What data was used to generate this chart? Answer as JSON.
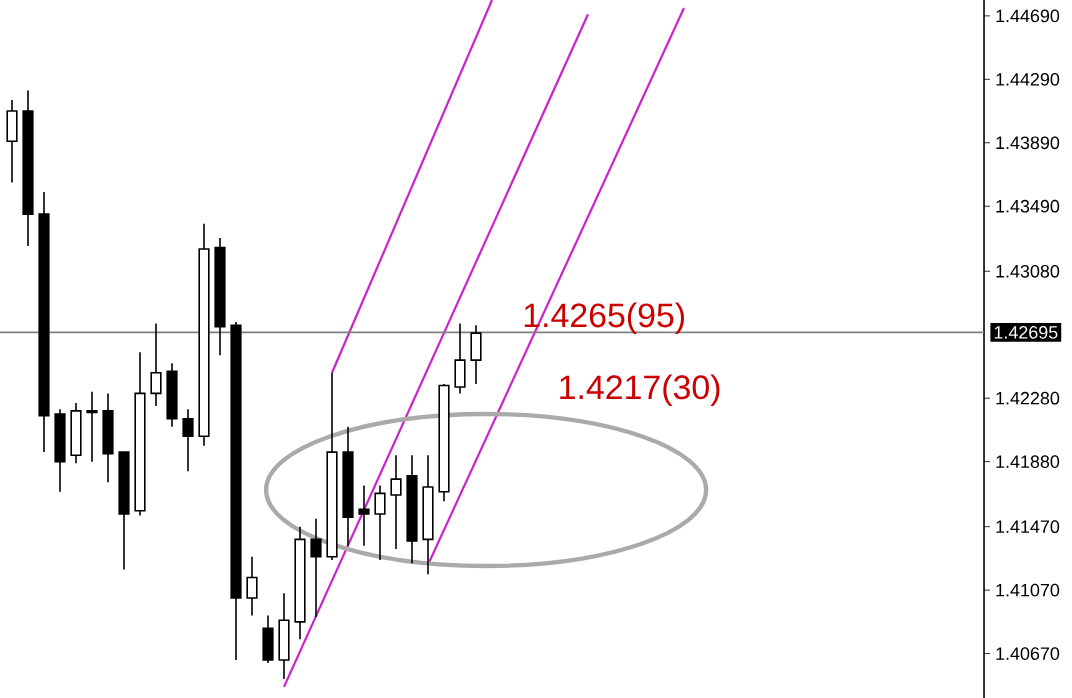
{
  "chart_data": {
    "type": "candlestick",
    "categories": [
      null,
      null,
      null,
      null,
      null,
      null,
      null,
      null,
      null,
      null,
      null,
      null,
      null,
      null,
      null,
      null,
      null,
      null,
      null,
      null,
      null,
      null,
      null,
      null,
      null,
      null,
      null,
      null,
      null,
      null,
      null,
      null,
      null,
      null,
      null,
      null,
      null,
      null,
      null,
      null,
      null,
      null,
      null,
      null,
      null,
      null,
      null,
      null,
      null,
      null,
      null,
      null,
      null,
      null,
      null,
      null,
      null,
      null,
      null,
      null,
      null
    ],
    "ohlc": [
      [
        1.439,
        1.4416,
        1.4364,
        1.4409
      ],
      [
        1.4409,
        1.4422,
        1.4324,
        1.4344
      ],
      [
        1.4344,
        1.4358,
        1.4194,
        1.4217
      ],
      [
        1.4218,
        1.4221,
        1.4169,
        1.4188
      ],
      [
        1.4192,
        1.4225,
        1.4187,
        1.422
      ],
      [
        1.4219,
        1.4232,
        1.4188,
        1.422
      ],
      [
        1.422,
        1.4231,
        1.4175,
        1.4193
      ],
      [
        1.4194,
        1.4194,
        1.412,
        1.4155
      ],
      [
        1.4157,
        1.4257,
        1.4154,
        1.4231
      ],
      [
        1.4231,
        1.4275,
        1.4223,
        1.4244
      ],
      [
        1.4245,
        1.425,
        1.421,
        1.4215
      ],
      [
        1.4215,
        1.4221,
        1.4182,
        1.4204
      ],
      [
        1.4204,
        1.4338,
        1.4198,
        1.4322
      ],
      [
        1.4323,
        1.4329,
        1.4255,
        1.4273
      ],
      [
        1.4274,
        1.4276,
        1.4063,
        1.4102
      ],
      [
        1.4102,
        1.4128,
        1.4091,
        1.4115
      ],
      [
        1.4083,
        1.4091,
        1.4061,
        1.4063
      ],
      [
        1.4063,
        1.4105,
        1.4051,
        1.4088
      ],
      [
        1.4087,
        1.4147,
        1.4076,
        1.4139
      ],
      [
        1.4139,
        1.4152,
        1.409,
        1.4128
      ],
      [
        1.4128,
        1.4244,
        1.4126,
        1.4194
      ],
      [
        1.4194,
        1.421,
        1.4135,
        1.4153
      ],
      [
        1.4158,
        1.4173,
        1.4135,
        1.4155
      ],
      [
        1.4155,
        1.4173,
        1.4126,
        1.4168
      ],
      [
        1.4167,
        1.4192,
        1.4133,
        1.4177
      ],
      [
        1.4179,
        1.4192,
        1.4124,
        1.4138
      ],
      [
        1.4139,
        1.4192,
        1.4117,
        1.4172
      ],
      [
        1.4169,
        1.4237,
        1.4163,
        1.4236
      ],
      [
        1.4235,
        1.4275,
        1.4231,
        1.4252
      ],
      [
        1.4252,
        1.4274,
        1.4237,
        1.4269
      ],
      null,
      null,
      null,
      null,
      null,
      null,
      null,
      null,
      null,
      null,
      null,
      null,
      null,
      null,
      null,
      null,
      null,
      null,
      null,
      null,
      null,
      null,
      null,
      null,
      null,
      null,
      null,
      null,
      null,
      null,
      null
    ],
    "series": [
      {
        "type": "line",
        "color": "#cc22cc",
        "values": [
          null,
          null,
          null,
          null,
          null,
          null,
          null,
          null,
          null,
          null,
          null,
          null,
          null,
          null,
          null,
          null,
          null,
          null,
          null,
          null,
          1.4244,
          null,
          null,
          null,
          null,
          null,
          null,
          null,
          null,
          null,
          1.4479,
          null,
          null,
          null,
          null,
          null,
          null,
          null,
          null,
          null,
          null,
          null,
          null,
          null,
          null,
          null,
          null,
          null,
          null,
          null,
          null,
          null,
          null,
          null,
          null,
          null,
          null,
          null,
          null,
          null,
          null
        ]
      },
      {
        "type": "line",
        "color": "#cc22cc",
        "values": [
          null,
          null,
          null,
          null,
          null,
          null,
          null,
          null,
          null,
          null,
          null,
          null,
          null,
          null,
          null,
          null,
          null,
          1.4046,
          null,
          null,
          null,
          null,
          null,
          null,
          null,
          null,
          null,
          null,
          null,
          null,
          null,
          null,
          null,
          null,
          null,
          null,
          1.447,
          null,
          null,
          null,
          null,
          null,
          null,
          null,
          null,
          null,
          null,
          null,
          null,
          null,
          null,
          null,
          null,
          null,
          null,
          null,
          null,
          null,
          null,
          null,
          null
        ]
      },
      {
        "type": "line",
        "color": "#cc22cc",
        "values": [
          null,
          null,
          null,
          null,
          null,
          null,
          null,
          null,
          null,
          null,
          null,
          null,
          null,
          null,
          null,
          null,
          null,
          null,
          null,
          null,
          null,
          null,
          null,
          null,
          null,
          null,
          1.4123,
          null,
          null,
          null,
          null,
          null,
          null,
          null,
          null,
          null,
          null,
          null,
          null,
          null,
          null,
          null,
          1.4474,
          null,
          null,
          null,
          null,
          null,
          null,
          null,
          null,
          null,
          null,
          null,
          null,
          null,
          null,
          null,
          null,
          null,
          null
        ]
      }
    ],
    "ylim": [
      1.4039,
      1.4479
    ],
    "yticks": [
      {
        "value": 1.4469,
        "label": "1.44690"
      },
      {
        "value": 1.4429,
        "label": "1.44290"
      },
      {
        "value": 1.4389,
        "label": "1.43890"
      },
      {
        "value": 1.4349,
        "label": "1.43490"
      },
      {
        "value": 1.4308,
        "label": "1.43080"
      },
      {
        "value": 1.4228,
        "label": "1.42280"
      },
      {
        "value": 1.4188,
        "label": "1.41880"
      },
      {
        "value": 1.4147,
        "label": "1.41470"
      },
      {
        "value": 1.4107,
        "label": "1.41070"
      },
      {
        "value": 1.4067,
        "label": "1.40670"
      }
    ],
    "ref_lines": [
      {
        "axis": "y",
        "value": 1.42695,
        "label": "1.42695",
        "color": "#808080"
      }
    ],
    "annotations": [
      "1.4265(95)",
      "1.4217(30)"
    ]
  }
}
